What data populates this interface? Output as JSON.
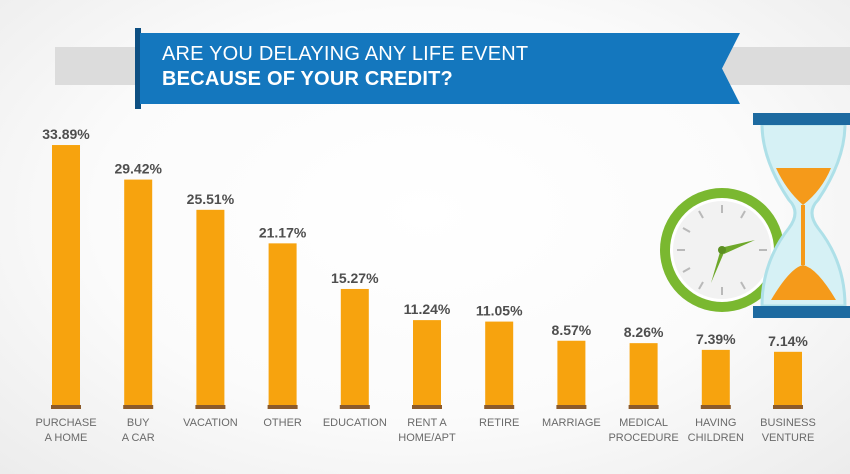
{
  "title": {
    "line1": "ARE YOU DELAYING ANY LIFE EVENT",
    "line2": "BECAUSE OF YOUR CREDIT?"
  },
  "colors": {
    "bar": "#f7a30e",
    "bar_base": "#8b5a2b",
    "banner": "#1477be",
    "clock_ring": "#7ab830",
    "hourglass_sand": "#f59a1a",
    "hourglass_cap": "#1d6aa0"
  },
  "chart_data": {
    "type": "bar",
    "categories": [
      [
        "PURCHASE",
        "A HOME"
      ],
      [
        "BUY",
        "A CAR"
      ],
      [
        "VACATION"
      ],
      [
        "OTHER"
      ],
      [
        "EDUCATION"
      ],
      [
        "RENT A",
        "HOME/APT"
      ],
      [
        "RETIRE"
      ],
      [
        "MARRIAGE"
      ],
      [
        "MEDICAL",
        "PROCEDURE"
      ],
      [
        "HAVING",
        "CHILDREN"
      ],
      [
        "BUSINESS",
        "VENTURE"
      ]
    ],
    "values": [
      33.89,
      29.42,
      25.51,
      21.17,
      15.27,
      11.24,
      11.05,
      8.57,
      8.26,
      7.39,
      7.14
    ],
    "value_labels": [
      "33.89%",
      "29.42%",
      "25.51%",
      "21.17%",
      "15.27%",
      "11.24%",
      "11.05%",
      "8.57%",
      "8.26%",
      "7.39%",
      "7.14%"
    ],
    "ylim": [
      0,
      35
    ],
    "grid": false,
    "legend": "none"
  },
  "decorations": [
    "clock-icon",
    "hourglass-icon"
  ]
}
